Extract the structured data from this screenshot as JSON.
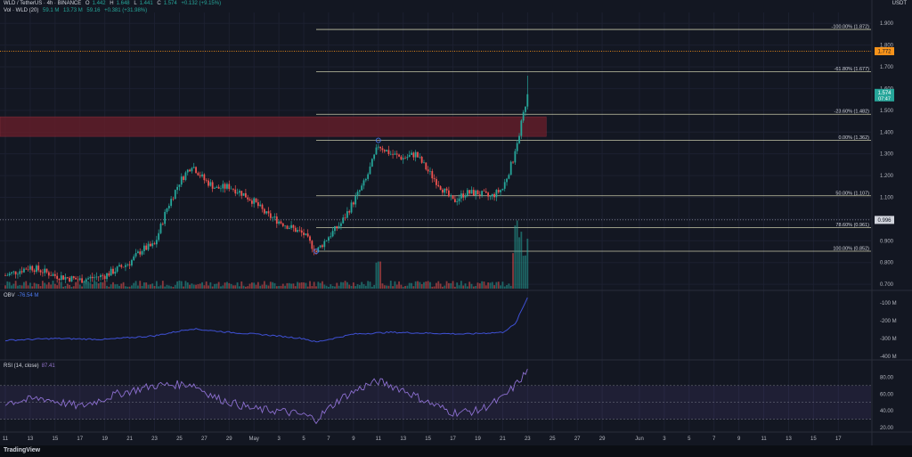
{
  "header": {
    "symbol": "WLD / TetherUS · 4h · BINANCE",
    "o_label": "O",
    "o_value": "1.442",
    "h_label": "H",
    "h_value": "1.648",
    "l_label": "L",
    "l_value": "1.441",
    "c_label": "C",
    "c_value": "1.574",
    "change": "+0.132 (+9.15%)",
    "vol_label": "Vol · WLD (20)",
    "vol_value1": "59.1 M",
    "vol_value2": "13.73 M",
    "vol_value3": "59.16",
    "vol_value4": "+0.381 (+31.98%)"
  },
  "currency": "USDT",
  "footer_logo": "TradingView",
  "colors": {
    "up": "#26a69a",
    "down": "#ef5350",
    "bg": "#131722",
    "fib": "#e6e6c0",
    "zone": "#6b1e2a",
    "obv": "#3f51d6",
    "rsi": "#8c6fd0",
    "badge_price": "#26a69a",
    "badge_orange": "#f7931a"
  },
  "chart_data": [
    {
      "type": "candlestick",
      "pair": "WLD/USDT",
      "interval": "4h",
      "x_tick_labels": [
        "11",
        "13",
        "15",
        "17",
        "19",
        "21",
        "23",
        "25",
        "27",
        "29",
        "May",
        "3",
        "5",
        "7",
        "9",
        "11",
        "13",
        "15",
        "17",
        "19",
        "21",
        "23",
        "25",
        "27",
        "29",
        "Jun",
        "3",
        "5",
        "7",
        "9",
        "11",
        "13",
        "15",
        "17"
      ],
      "y_tick_labels": [
        "1.900",
        "1.800",
        "1.700",
        "1.600",
        "1.500",
        "1.400",
        "1.300",
        "1.200",
        "1.100",
        "1.000",
        "0.900",
        "0.800",
        "0.700"
      ],
      "ylim": [
        0.68,
        1.95
      ],
      "price_path": [
        [
          "Apr 11",
          0.74
        ],
        [
          "Apr 13",
          0.78
        ],
        [
          "Apr 15",
          0.74
        ],
        [
          "Apr 17",
          0.72
        ],
        [
          "Apr 19",
          0.74
        ],
        [
          "Apr 21",
          0.8
        ],
        [
          "Apr 22",
          0.86
        ],
        [
          "Apr 23",
          0.88
        ],
        [
          "Apr 24",
          1.05
        ],
        [
          "Apr 25",
          1.17
        ],
        [
          "Apr 26",
          1.25
        ],
        [
          "Apr 27",
          1.18
        ],
        [
          "Apr 28",
          1.14
        ],
        [
          "Apr 29",
          1.15
        ],
        [
          "Apr 30",
          1.12
        ],
        [
          "May 1",
          1.08
        ],
        [
          "May 2",
          1.02
        ],
        [
          "May 3",
          0.99
        ],
        [
          "May 4",
          0.96
        ],
        [
          "May 5",
          0.93
        ],
        [
          "May 6",
          0.85
        ],
        [
          "May 7",
          0.92
        ],
        [
          "May 8",
          0.98
        ],
        [
          "May 9",
          1.08
        ],
        [
          "May 10",
          1.18
        ],
        [
          "May 11",
          1.34
        ],
        [
          "May 12",
          1.3
        ],
        [
          "May 13",
          1.28
        ],
        [
          "May 14",
          1.3
        ],
        [
          "May 15",
          1.22
        ],
        [
          "May 16",
          1.15
        ],
        [
          "May 17",
          1.08
        ],
        [
          "May 18",
          1.12
        ],
        [
          "May 19",
          1.12
        ],
        [
          "May 20",
          1.1
        ],
        [
          "May 21",
          1.14
        ],
        [
          "May 22",
          1.3
        ],
        [
          "May 23",
          1.574
        ]
      ],
      "last_price": "1.574",
      "last_price_countdown": "07:47",
      "orange_level": "1.772",
      "dotted_level": "0.996",
      "supply_zone": [
        1.38,
        1.47
      ],
      "fib_levels": [
        {
          "label": "-100.00% (1.872)",
          "value": 1.872
        },
        {
          "label": "-61.80% (1.677)",
          "value": 1.677
        },
        {
          "label": "-23.60% (1.482)",
          "value": 1.482
        },
        {
          "label": "0.00% (1.362)",
          "value": 1.362
        },
        {
          "label": "50.00% (1.107)",
          "value": 1.107
        },
        {
          "label": "78.60% (0.961)",
          "value": 0.961
        },
        {
          "label": "100.00% (0.852)",
          "value": 0.852
        }
      ]
    },
    {
      "type": "line",
      "name": "OBV",
      "title": "OBV",
      "value_label": "-76.54 M",
      "y_tick_labels": [
        "-100 M",
        "-200 M",
        "-300 M",
        "-400 M"
      ],
      "ylim": [
        -400,
        -60
      ],
      "path": [
        [
          "Apr 11",
          -310
        ],
        [
          "Apr 15",
          -300
        ],
        [
          "Apr 19",
          -305
        ],
        [
          "Apr 23",
          -285
        ],
        [
          "Apr 26",
          -245
        ],
        [
          "Apr 29",
          -265
        ],
        [
          "May 2",
          -280
        ],
        [
          "May 5",
          -300
        ],
        [
          "May 6",
          -320
        ],
        [
          "May 9",
          -275
        ],
        [
          "May 12",
          -265
        ],
        [
          "May 15",
          -270
        ],
        [
          "May 18",
          -275
        ],
        [
          "May 21",
          -265
        ],
        [
          "May 22",
          -220
        ],
        [
          "May 23",
          -70
        ]
      ]
    },
    {
      "type": "line",
      "name": "RSI",
      "title": "RSI (14, close)",
      "value_label": "87.41",
      "y_tick_labels": [
        "80.00",
        "60.00",
        "40.00",
        "20.00"
      ],
      "ylim": [
        18,
        92
      ],
      "band": [
        30,
        70
      ],
      "path": [
        [
          "Apr 11",
          50
        ],
        [
          "Apr 14",
          55
        ],
        [
          "Apr 17",
          45
        ],
        [
          "Apr 20",
          60
        ],
        [
          "Apr 23",
          70
        ],
        [
          "Apr 26",
          72
        ],
        [
          "Apr 28",
          55
        ],
        [
          "May 1",
          42
        ],
        [
          "May 3",
          40
        ],
        [
          "May 5",
          35
        ],
        [
          "May 6",
          30
        ],
        [
          "May 8",
          55
        ],
        [
          "May 10",
          70
        ],
        [
          "May 11",
          75
        ],
        [
          "May 13",
          65
        ],
        [
          "May 15",
          50
        ],
        [
          "May 17",
          38
        ],
        [
          "May 19",
          40
        ],
        [
          "May 21",
          55
        ],
        [
          "May 22",
          70
        ],
        [
          "May 23",
          87.41
        ]
      ]
    }
  ]
}
